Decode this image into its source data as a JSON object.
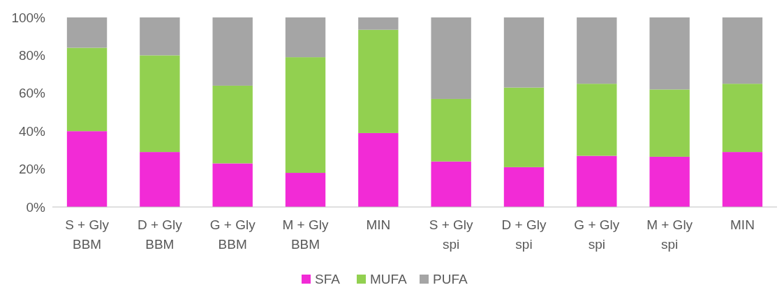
{
  "chart_data": {
    "type": "bar",
    "stacked": true,
    "categories": [
      "S + Gly\nBBM",
      "D + Gly\nBBM",
      "G + Gly\nBBM",
      "M + Gly\nBBM",
      "MIN",
      "S + Gly\nspi",
      "D + Gly\nspi",
      "G + Gly\nspi",
      "M + Gly\nspi",
      "MIN"
    ],
    "series": [
      {
        "name": "SFA",
        "color": "#f22bd6",
        "values": [
          40,
          29,
          23,
          18,
          39,
          24,
          21,
          27,
          26.5,
          29
        ]
      },
      {
        "name": "MUFA",
        "color": "#92d050",
        "values": [
          44,
          51,
          41,
          61,
          54.5,
          33,
          42,
          38,
          35.5,
          36
        ]
      },
      {
        "name": "PUFA",
        "color": "#a5a5a5",
        "values": [
          16,
          20,
          36,
          21,
          6.5,
          43,
          37,
          35,
          38,
          35
        ]
      }
    ],
    "ylim": [
      0,
      100
    ],
    "yticks": [
      {
        "value": 0,
        "label": "0%"
      },
      {
        "value": 20,
        "label": "20%"
      },
      {
        "value": 40,
        "label": "40%"
      },
      {
        "value": 60,
        "label": "60%"
      },
      {
        "value": 80,
        "label": "80%"
      },
      {
        "value": 100,
        "label": "100%"
      }
    ],
    "grid": false,
    "legend": "bottom"
  }
}
